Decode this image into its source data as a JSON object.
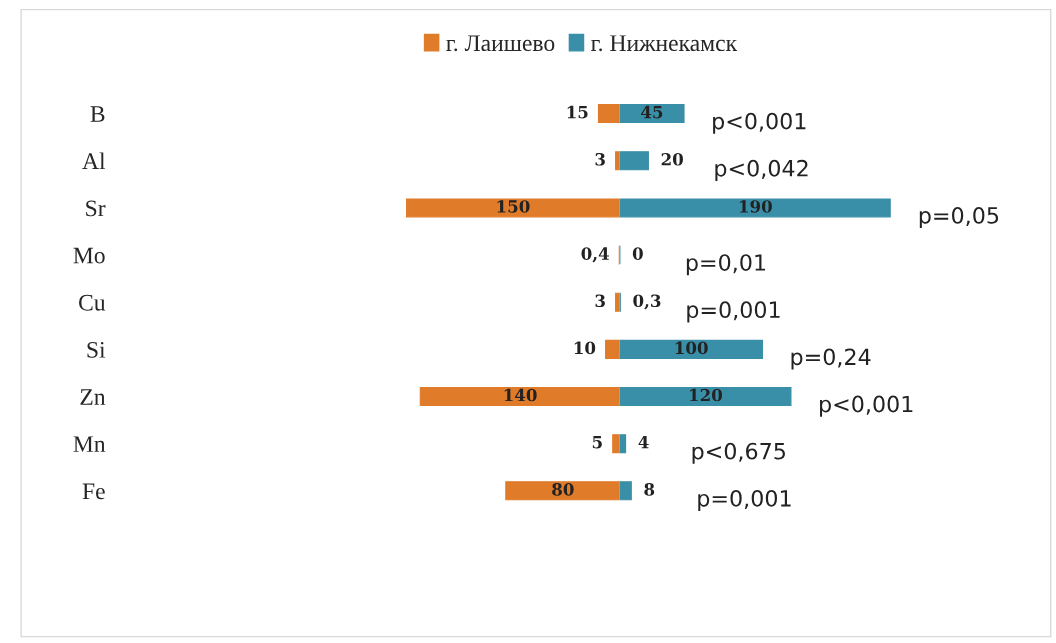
{
  "chart_data": [
    {
      "type": "bar",
      "orientation": "horizontal",
      "categories": [
        "B",
        "Al",
        "Sr",
        "Mo",
        "Cu",
        "Si",
        "Zn",
        "Mn",
        "Fe"
      ],
      "series": [
        {
          "name": "г. Лаишево",
          "color": "#e07b2a",
          "values": [
            15,
            3,
            150,
            0.4,
            3,
            10,
            140,
            5,
            80
          ],
          "value_labels": [
            "15",
            "3",
            "150",
            "0,4",
            "3",
            "10",
            "140",
            "5",
            "80"
          ]
        }
      ],
      "xlim": [
        150,
        0
      ],
      "legend": "top"
    },
    {
      "type": "bar",
      "orientation": "horizontal",
      "categories": [
        null,
        null,
        null,
        null,
        null,
        null,
        null,
        null,
        null
      ],
      "series": [
        {
          "name": "г. Нижнекамск",
          "color": "#3a8fa8",
          "values": [
            45,
            20,
            190,
            0,
            0.3,
            100,
            120,
            4,
            8
          ],
          "value_labels": [
            "45",
            "20",
            "190",
            "0",
            "0,3",
            "100",
            "120",
            "4",
            "8"
          ]
        }
      ],
      "xlim": [
        0,
        190
      ],
      "legend": "top",
      "annotations": [
        "p<0,001",
        "p<0,042",
        "p=0,05",
        "p=0,01",
        "p=0,001",
        "p=0,24",
        "p<0,001",
        "p<0,675",
        "p=0,001"
      ]
    }
  ]
}
